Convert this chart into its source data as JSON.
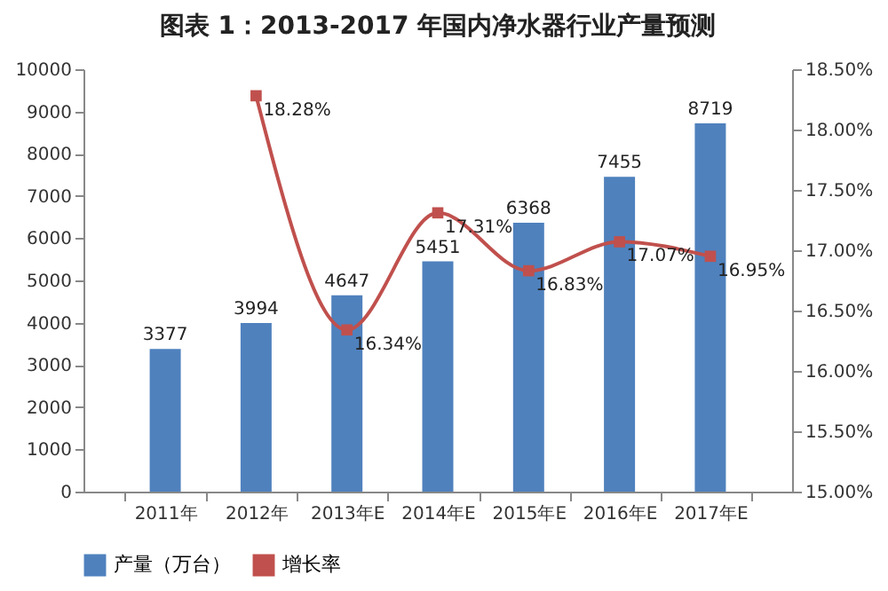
{
  "chart_data": {
    "type": "bar",
    "title": "图表 1：2013-2017 年国内净水器行业产量预测",
    "categories": [
      "2011年",
      "2012年",
      "2013年E",
      "2014年E",
      "2015年E",
      "2016年E",
      "2017年E"
    ],
    "series": [
      {
        "name": "产量（万台）",
        "color": "#4f81bd",
        "values": [
          3377,
          3994,
          4647,
          5451,
          6368,
          7455,
          8719
        ]
      },
      {
        "name": "增长率",
        "type": "line",
        "axis": "y2",
        "color": "#c0504d",
        "marker": "square",
        "values": [
          null,
          18.28,
          16.34,
          17.31,
          16.83,
          17.07,
          16.95
        ],
        "value_labels": [
          null,
          "18.28%",
          "16.34%",
          "17.31%",
          "16.83%",
          "17.07%",
          "16.95%"
        ]
      }
    ],
    "data_labels": true,
    "ylim": [
      0,
      10000
    ],
    "yticks": [
      0,
      1000,
      2000,
      3000,
      4000,
      5000,
      6000,
      7000,
      8000,
      9000,
      10000
    ],
    "y2lim": [
      15,
      18.5
    ],
    "y2ticks": [
      {
        "value": 15,
        "label": "15.00%"
      },
      {
        "value": 15.5,
        "label": "15.50%"
      },
      {
        "value": 16,
        "label": "16.00%"
      },
      {
        "value": 16.5,
        "label": "16.50%"
      },
      {
        "value": 17,
        "label": "17.00%"
      },
      {
        "value": 17.5,
        "label": "17.50%"
      },
      {
        "value": 18,
        "label": "18.00%"
      },
      {
        "value": 18.5,
        "label": "18.50%"
      }
    ],
    "grid": false,
    "legend": "bottom"
  }
}
